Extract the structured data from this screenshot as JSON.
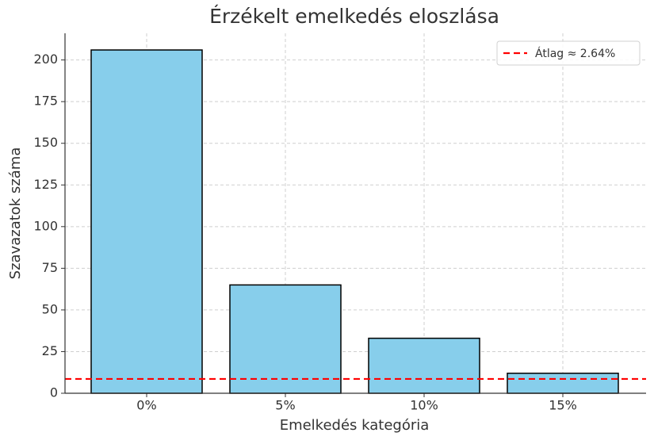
{
  "chart_data": {
    "type": "bar",
    "title": "Érzékelt emelkedés eloszlása",
    "x_label": "Emelkedés kategória",
    "y_label": "Szavazatok száma",
    "categories": [
      "0%",
      "5%",
      "10%",
      "15%"
    ],
    "values": [
      206,
      65,
      33,
      12
    ],
    "color": "#87ceeb",
    "edge_color": "#000000",
    "ylim": [
      0,
      216
    ],
    "yticks": [
      0,
      25,
      50,
      75,
      100,
      125,
      150,
      175,
      200
    ],
    "grid": true,
    "legend": "upper right",
    "reference_line": {
      "name": "Átlag ≈ 2.64%",
      "value": 8.6,
      "color": "#ff0000"
    }
  }
}
